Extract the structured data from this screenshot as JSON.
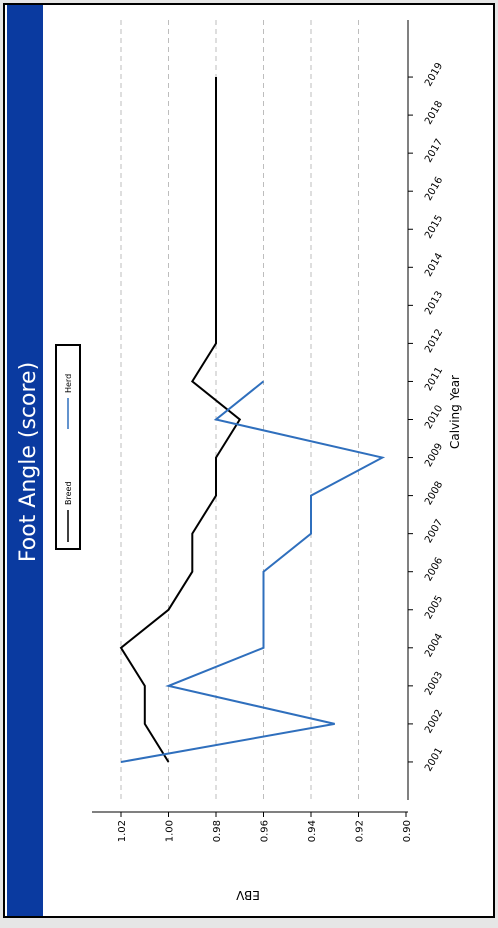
{
  "chart_data": {
    "type": "line",
    "title": "Foot Angle (score)",
    "xlabel": "Calving Year",
    "ylabel": "EBV",
    "x": [
      "2001",
      "2002",
      "2003",
      "2004",
      "2005",
      "2006",
      "2007",
      "2008",
      "2009",
      "2010",
      "2011",
      "2012",
      "2013",
      "2014",
      "2015",
      "2016",
      "2017",
      "2018",
      "2019"
    ],
    "xlim": [
      "2000",
      "2020"
    ],
    "ylim": [
      0.9,
      1.03
    ],
    "yticks": [
      1.02,
      1.0,
      0.98,
      0.96,
      0.94,
      0.92,
      0.9
    ],
    "ytick_labels": [
      "1.02",
      "1.00",
      "0.98",
      "0.96",
      "0.94",
      "0.92",
      "0.90"
    ],
    "grid": true,
    "legend_position": "top",
    "orientation": "rotated 90° clockwise",
    "series": [
      {
        "name": "Breed",
        "color": "#000000",
        "x": [
          "2001",
          "2002",
          "2003",
          "2004",
          "2005",
          "2006",
          "2007",
          "2008",
          "2009",
          "2010",
          "2011",
          "2012",
          "2013",
          "2014",
          "2015",
          "2016",
          "2017",
          "2018",
          "2019"
        ],
        "values": [
          1.0,
          1.01,
          1.01,
          1.02,
          1.0,
          0.99,
          0.99,
          0.98,
          0.98,
          0.97,
          0.99,
          0.98,
          0.98,
          0.98,
          0.98,
          0.98,
          0.98,
          0.98,
          0.98
        ]
      },
      {
        "name": "Herd",
        "color": "#2f6fbd",
        "x": [
          "2001",
          "2002",
          "2003",
          "2004",
          "2005",
          "2006",
          "2007",
          "2008",
          "2009",
          "2010",
          "2011"
        ],
        "values": [
          1.02,
          0.93,
          1.0,
          0.96,
          0.96,
          0.96,
          0.94,
          0.94,
          0.91,
          0.98,
          0.96
        ]
      }
    ]
  }
}
